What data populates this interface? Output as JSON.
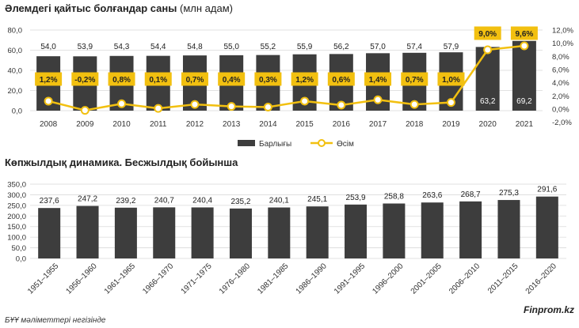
{
  "chart_data": [
    {
      "type": "bar+line",
      "title": "Әлемдегі қайтыс болғандар саны",
      "unit": "(млн адам)",
      "categories": [
        "2008",
        "2009",
        "2010",
        "2011",
        "2012",
        "2013",
        "2014",
        "2015",
        "2016",
        "2017",
        "2018",
        "2019",
        "2020",
        "2021"
      ],
      "series": [
        {
          "name": "Барлығы",
          "kind": "bar",
          "axis": "left",
          "values": [
            54.0,
            53.9,
            54.3,
            54.4,
            54.8,
            55.0,
            55.2,
            55.9,
            56.2,
            57.0,
            57.4,
            57.9,
            63.2,
            69.2
          ],
          "labels": [
            "54,0",
            "53,9",
            "54,3",
            "54,4",
            "54,8",
            "55,0",
            "55,2",
            "55,9",
            "56,2",
            "57,0",
            "57,4",
            "57,9",
            "63,2",
            "69,2"
          ]
        },
        {
          "name": "Өсім",
          "kind": "line",
          "axis": "right",
          "values": [
            1.2,
            -0.2,
            0.8,
            0.1,
            0.7,
            0.4,
            0.3,
            1.2,
            0.6,
            1.4,
            0.7,
            1.0,
            9.0,
            9.6
          ],
          "labels": [
            "1,2%",
            "-0,2%",
            "0,8%",
            "0,1%",
            "0,7%",
            "0,4%",
            "0,3%",
            "1,2%",
            "0,6%",
            "1,4%",
            "0,7%",
            "1,0%",
            "9,0%",
            "9,6%"
          ]
        }
      ],
      "ylim_left": [
        0,
        80
      ],
      "yticks_left": [
        "0,0",
        "20,0",
        "40,0",
        "60,0",
        "80,0"
      ],
      "ylim_right": [
        -2,
        12
      ],
      "yticks_right": [
        "-2,0%",
        "0,0%",
        "2,0%",
        "4,0%",
        "6,0%",
        "8,0%",
        "10,0%",
        "12,0%"
      ],
      "legend": [
        "Барлығы",
        "Өсім"
      ],
      "legend_position": "bottom",
      "colors": {
        "bar": "#3d3d3d",
        "line": "#f2c010",
        "label_box": "#f2c010",
        "grid": "#d9d9d9"
      }
    },
    {
      "type": "bar",
      "title": "Көпжылдық динамика. Бесжылдық бойынша",
      "categories": [
        "1951–1955",
        "1956–1960",
        "1961–1965",
        "1966–1970",
        "1971–1975",
        "1976–1980",
        "1981–1985",
        "1986–1990",
        "1991–1995",
        "1996–2000",
        "2001–2005",
        "2006–2010",
        "2011–2015",
        "2016–2020"
      ],
      "values": [
        237.6,
        247.2,
        239.2,
        240.7,
        240.4,
        235.2,
        240.1,
        245.1,
        253.9,
        258.8,
        263.6,
        268.7,
        275.3,
        291.6
      ],
      "labels": [
        "237,6",
        "247,2",
        "239,2",
        "240,7",
        "240,4",
        "235,2",
        "240,1",
        "245,1",
        "253,9",
        "258,8",
        "263,6",
        "268,7",
        "275,3",
        "291,6"
      ],
      "ylim": [
        0,
        350
      ],
      "yticks": [
        "0,0",
        "50,0",
        "100,0",
        "150,0",
        "200,0",
        "250,0",
        "300,0",
        "350,0"
      ],
      "colors": {
        "bar": "#3d3d3d",
        "grid": "#d9d9d9"
      }
    }
  ],
  "footnote": "БҰҰ мәліметтері негізінде",
  "brand": "Finprom.kz"
}
